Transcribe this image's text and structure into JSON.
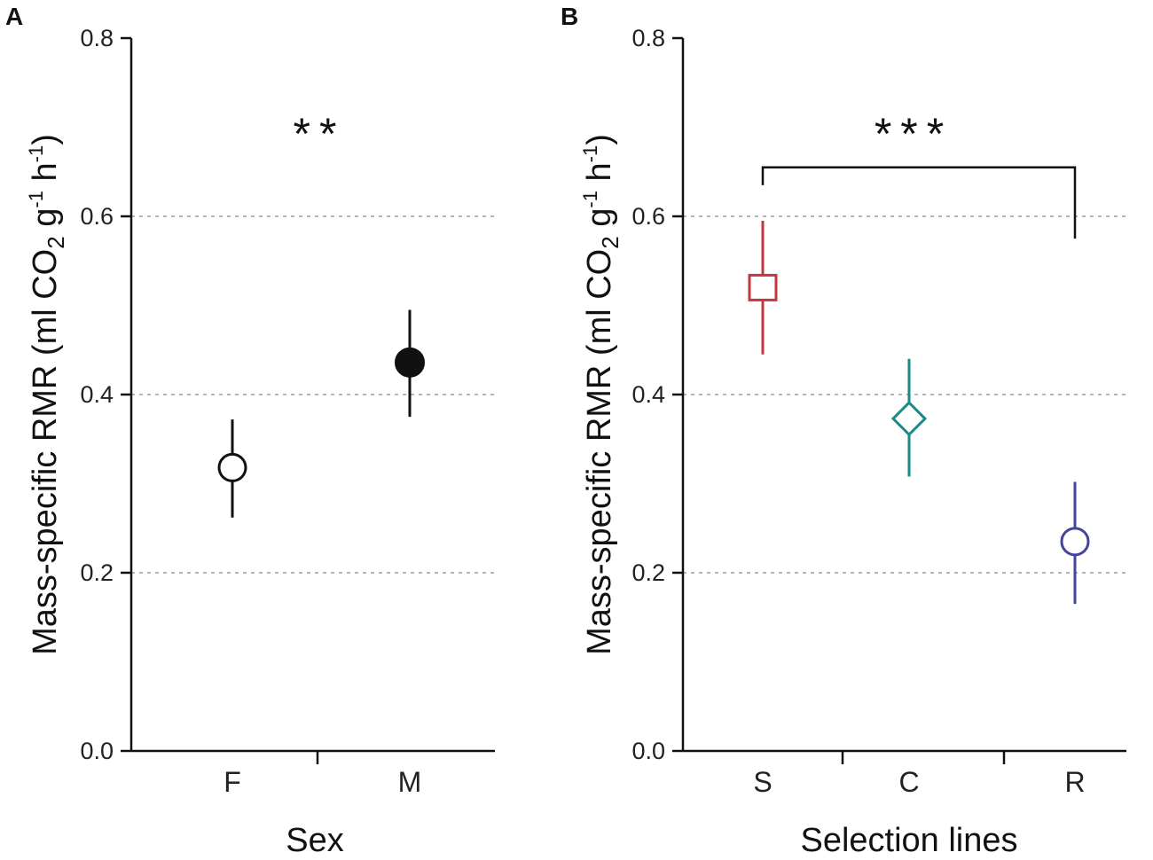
{
  "chart_data": [
    {
      "type": "scatter",
      "panel": "A",
      "xlabel": "Sex",
      "ylabel": "Mass-specific RMR (ml CO",
      "ylabel_sub": "2",
      "ylabel_mid": " g",
      "ylabel_sup1": "-1",
      "ylabel_h": " h",
      "ylabel_sup2": "-1",
      "ylabel_end": ")",
      "ylim": [
        0,
        0.8
      ],
      "yticks": [
        "0.0",
        "0.2",
        "0.4",
        "0.6",
        "0.8"
      ],
      "grid_values": [
        0.2,
        0.4,
        0.6
      ],
      "categories": [
        "F",
        "M"
      ],
      "points": [
        {
          "category": "F",
          "mean": 0.318,
          "lower": 0.262,
          "upper": 0.372,
          "marker": "circle-open",
          "color": "#111111"
        },
        {
          "category": "M",
          "mean": 0.436,
          "lower": 0.375,
          "upper": 0.495,
          "marker": "circle-filled",
          "color": "#111111"
        }
      ],
      "annotation": "**"
    },
    {
      "type": "scatter",
      "panel": "B",
      "xlabel": "Selection lines",
      "ylabel": "Mass-specific RMR (ml CO",
      "ylabel_sub": "2",
      "ylabel_mid": " g",
      "ylabel_sup1": "-1",
      "ylabel_h": " h",
      "ylabel_sup2": "-1",
      "ylabel_end": ")",
      "ylim": [
        0,
        0.8
      ],
      "yticks": [
        "0.0",
        "0.2",
        "0.4",
        "0.6",
        "0.8"
      ],
      "grid_values": [
        0.2,
        0.4,
        0.6
      ],
      "categories": [
        "S",
        "C",
        "R"
      ],
      "points": [
        {
          "category": "S",
          "mean": 0.52,
          "lower": 0.445,
          "upper": 0.595,
          "marker": "square-open",
          "color": "#c0393f"
        },
        {
          "category": "C",
          "mean": 0.373,
          "lower": 0.308,
          "upper": 0.44,
          "marker": "diamond-open",
          "color": "#1a8a86"
        },
        {
          "category": "R",
          "mean": 0.235,
          "lower": 0.165,
          "upper": 0.302,
          "marker": "circle-open",
          "color": "#43479a"
        }
      ],
      "annotation": "***",
      "bracket": {
        "from": "S",
        "to": "R",
        "y": 0.655,
        "left_bottom": 0.635,
        "right_bottom": 0.575
      }
    }
  ]
}
